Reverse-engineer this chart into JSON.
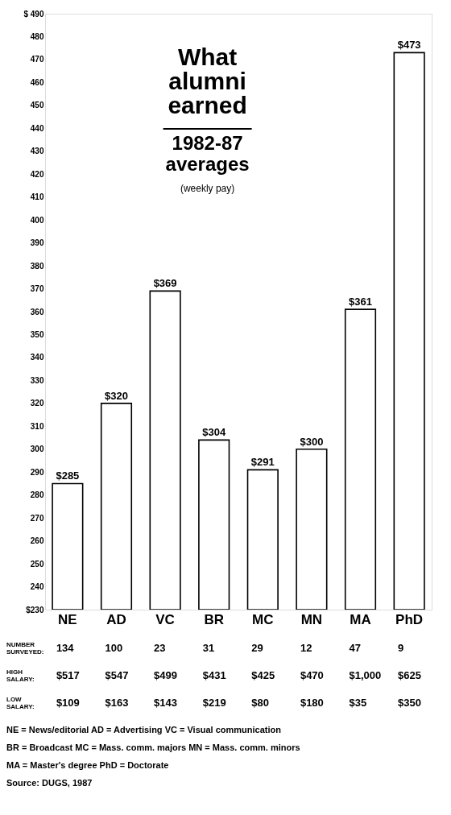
{
  "chart_data": {
    "type": "bar",
    "title": "What alumni earned",
    "subtitle": "1982-87 averages",
    "categories": [
      "NE",
      "AD",
      "VC",
      "BR",
      "MC",
      "MN",
      "MA",
      "PhD"
    ],
    "values": [
      285,
      320,
      369,
      304,
      291,
      300,
      361,
      473
    ],
    "value_labels": [
      "$285",
      "$320",
      "$369",
      "$304",
      "$291",
      "$300",
      "$361",
      "$473"
    ],
    "color": "#ffffff",
    "ylim": [
      230,
      490
    ],
    "yticks": [
      {
        "value": 230,
        "label": "$230"
      },
      240,
      250,
      260,
      270,
      280,
      290,
      300,
      310,
      320,
      330,
      340,
      350,
      360,
      370,
      380,
      390,
      400,
      410,
      420,
      430,
      440,
      450,
      460,
      470,
      480,
      {
        "value": 490,
        "label": "$ 490"
      }
    ],
    "grid": false,
    "annotations": [
      "(weekly pay)",
      "NUMBER SURVEYED:",
      "134",
      "100",
      "23",
      "31",
      "29",
      "12",
      "47",
      "9",
      "HIGH SALARY:",
      "$517",
      "$547",
      "$499",
      "$431",
      "$425",
      "$470",
      "$1,000",
      "$625",
      "LOW SALARY:",
      "$109",
      "$163",
      "$143",
      "$219",
      "$80",
      "$180",
      "$35",
      "$350",
      "NE = News/editorial   AD = Advertising   VC = Visual communication",
      "BR = Broadcast   MC = Mass. comm. majors   MN = Mass. comm. minors",
      "MA = Master's degree   PhD = Doctorate",
      "Source: DUGS, 1987"
    ]
  }
}
